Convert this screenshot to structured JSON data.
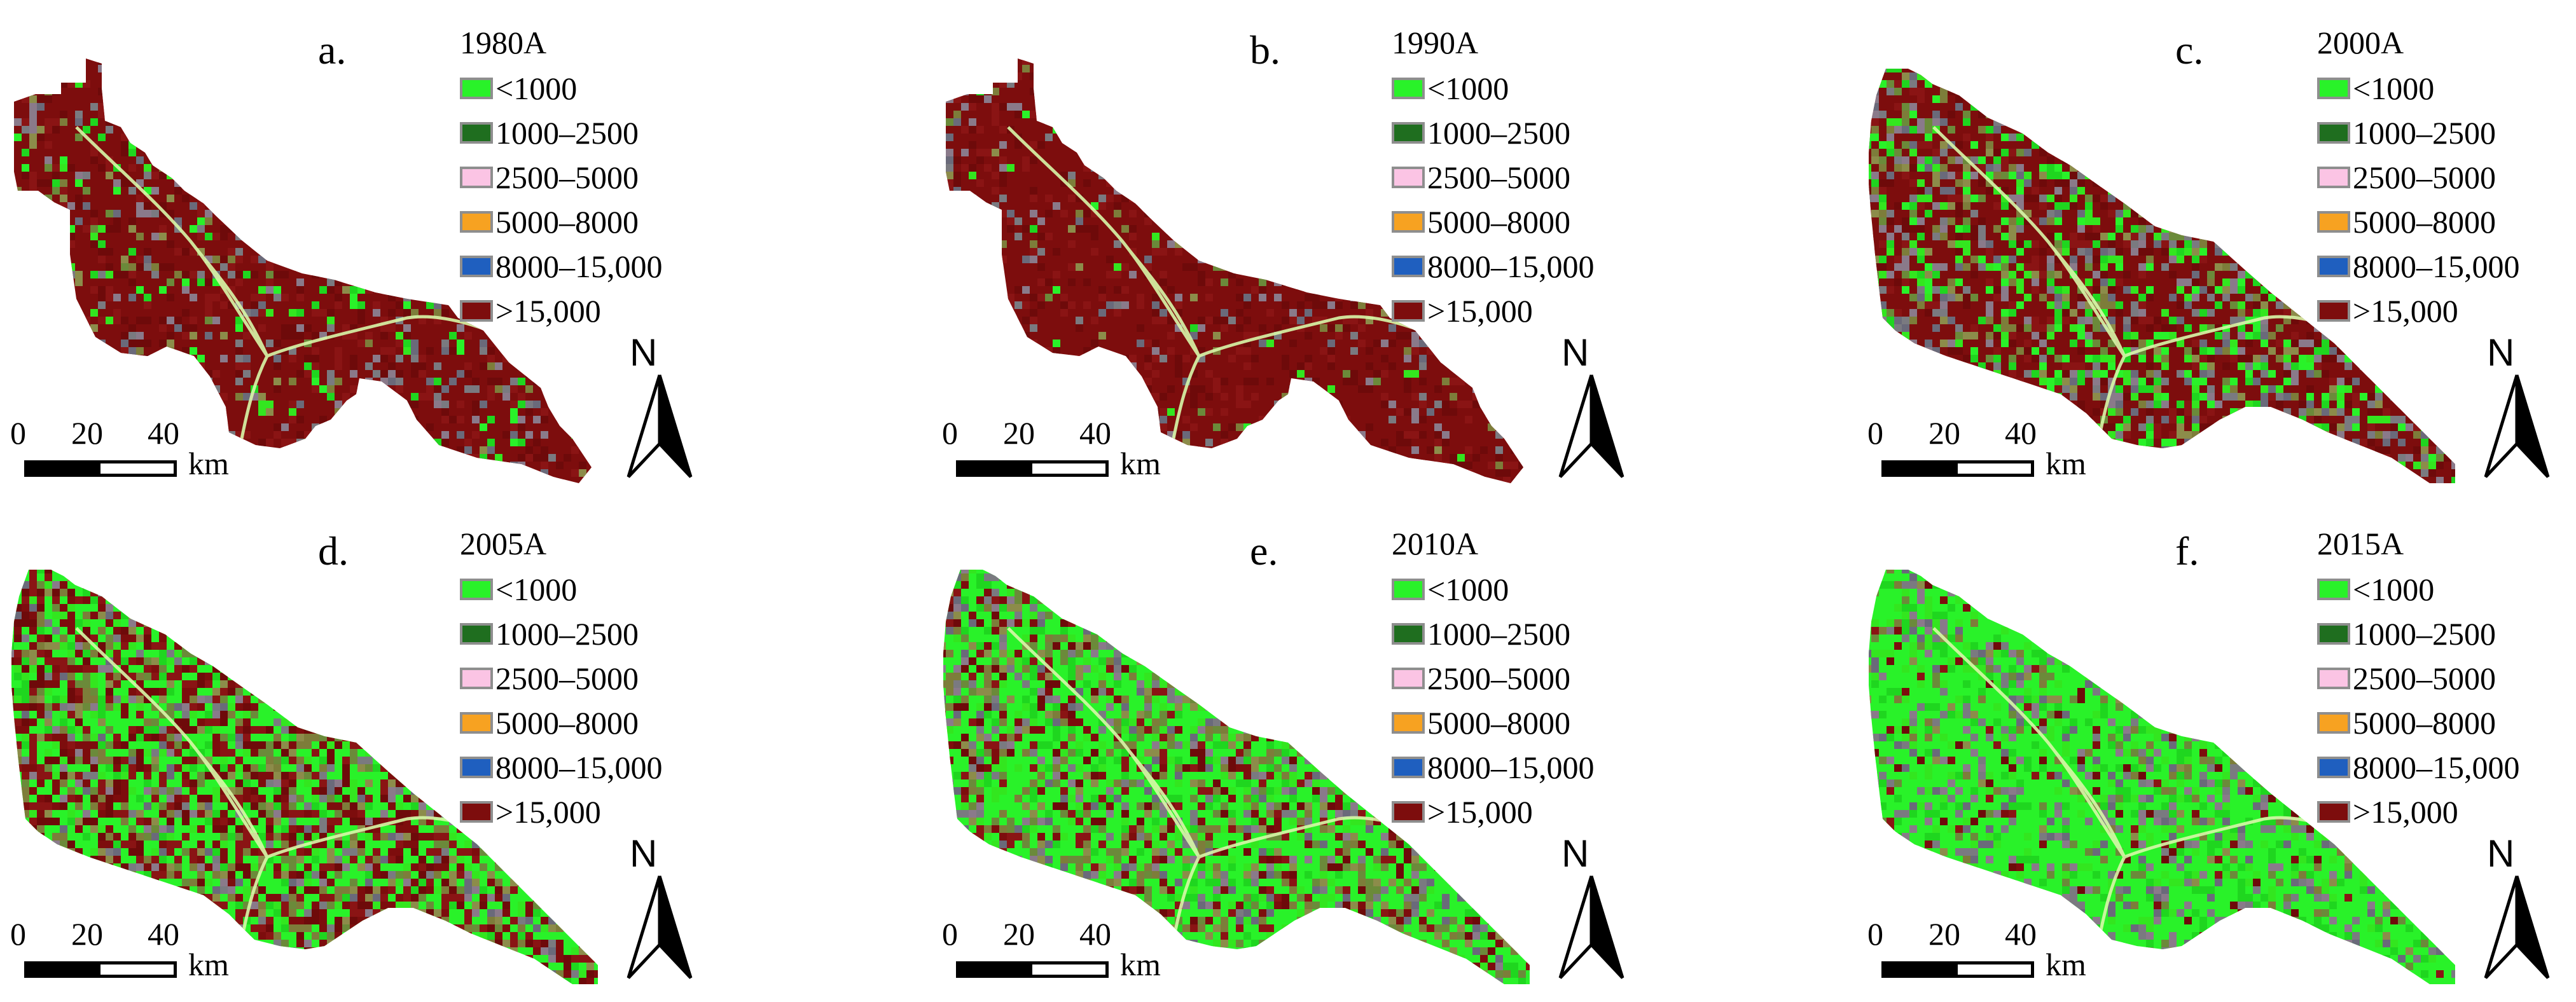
{
  "legend_classes": [
    {
      "label": "<1000",
      "color": "#29f229"
    },
    {
      "label": "1000–2500",
      "color": "#1f6e1f"
    },
    {
      "label": "2500–5000",
      "color": "#fbc4e4"
    },
    {
      "label": "5000–8000",
      "color": "#f7a221"
    },
    {
      "label": "8000–15,000",
      "color": "#1f5fbf"
    },
    {
      "label": ">15,000",
      "color": "#7d0d0d"
    }
  ],
  "scale": {
    "ticks": [
      "0",
      "20",
      "40"
    ],
    "unit": "km"
  },
  "north": "N",
  "panels": [
    {
      "letter": "a.",
      "title": "1980A",
      "shape": "old",
      "share": {
        "red": 0.8,
        "green": 0.06,
        "olive": 0.04,
        "grey": 0.1
      }
    },
    {
      "letter": "b.",
      "title": "1990A",
      "shape": "old",
      "share": {
        "red": 0.9,
        "green": 0.02,
        "olive": 0.02,
        "grey": 0.06
      }
    },
    {
      "letter": "c.",
      "title": "2000A",
      "shape": "new",
      "share": {
        "red": 0.55,
        "green": 0.18,
        "olive": 0.12,
        "grey": 0.15
      }
    },
    {
      "letter": "d.",
      "title": "2005A",
      "shape": "new",
      "share": {
        "red": 0.35,
        "green": 0.4,
        "olive": 0.15,
        "grey": 0.1
      }
    },
    {
      "letter": "e.",
      "title": "2010A",
      "shape": "new",
      "share": {
        "red": 0.15,
        "green": 0.55,
        "olive": 0.18,
        "grey": 0.12
      }
    },
    {
      "letter": "f.",
      "title": "2015A",
      "shape": "new",
      "share": {
        "red": 0.05,
        "green": 0.72,
        "olive": 0.08,
        "grey": 0.15
      }
    }
  ]
}
